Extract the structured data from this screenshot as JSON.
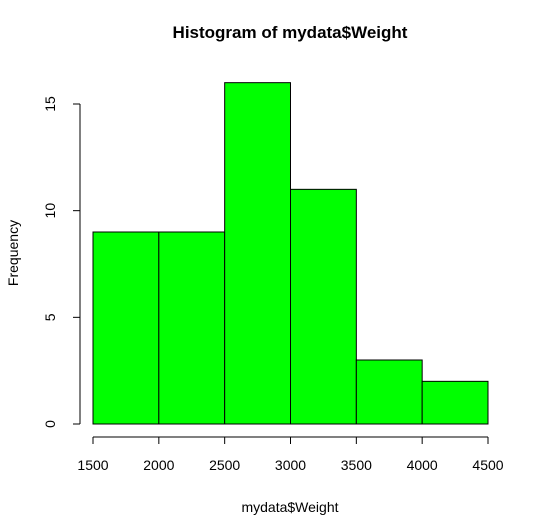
{
  "chart_data": {
    "type": "bar",
    "histogram": true,
    "title": "Histogram of mydata$Weight",
    "xlabel": "mydata$Weight",
    "ylabel": "Frequency",
    "bins": [
      {
        "from": 1500,
        "to": 2000,
        "count": 9
      },
      {
        "from": 2000,
        "to": 2500,
        "count": 9
      },
      {
        "from": 2500,
        "to": 3000,
        "count": 16
      },
      {
        "from": 3000,
        "to": 3500,
        "count": 11
      },
      {
        "from": 3500,
        "to": 4000,
        "count": 3
      },
      {
        "from": 4000,
        "to": 4500,
        "count": 2
      }
    ],
    "xlim": [
      1500,
      4500
    ],
    "ylim": [
      0,
      16
    ],
    "x_ticks": [
      1500,
      2000,
      2500,
      3000,
      3500,
      4000,
      4500
    ],
    "y_ticks": [
      0,
      5,
      10,
      15
    ],
    "bar_color": "#00ff00",
    "grid": false
  }
}
